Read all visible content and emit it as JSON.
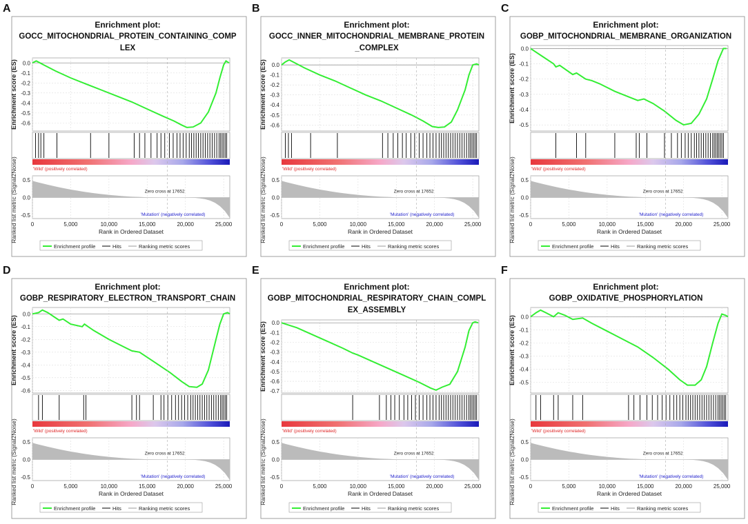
{
  "chart_data": [
    {
      "type": "line",
      "panel_letter": "A",
      "title_prefix": "Enrichment plot:",
      "title_lines": [
        "GOCC_MITOCHONDRIAL_PROTEIN_CONTAINING_COMP",
        "LEX"
      ],
      "es_ylabel": "Enrichment score (ES)",
      "es_yticks": [
        0.0,
        -0.1,
        -0.2,
        -0.3,
        -0.4,
        -0.5,
        -0.6
      ],
      "es_ylim": [
        -0.68,
        0.05
      ],
      "es_curve": [
        [
          0,
          0.0
        ],
        [
          500,
          0.02
        ],
        [
          1000,
          0.0
        ],
        [
          1500,
          -0.02
        ],
        [
          3000,
          -0.08
        ],
        [
          5000,
          -0.15
        ],
        [
          7000,
          -0.21
        ],
        [
          9000,
          -0.27
        ],
        [
          11000,
          -0.33
        ],
        [
          13000,
          -0.39
        ],
        [
          15000,
          -0.46
        ],
        [
          17000,
          -0.53
        ],
        [
          18500,
          -0.58
        ],
        [
          19500,
          -0.62
        ],
        [
          20200,
          -0.645
        ],
        [
          21000,
          -0.64
        ],
        [
          22000,
          -0.6
        ],
        [
          23000,
          -0.49
        ],
        [
          24000,
          -0.3
        ],
        [
          24500,
          -0.15
        ],
        [
          25000,
          -0.02
        ],
        [
          25300,
          0.02
        ],
        [
          25700,
          0.0
        ]
      ],
      "hits": [
        400,
        800,
        1100,
        1500,
        3200,
        7600,
        10000,
        13300,
        14000,
        14700,
        15500,
        16300,
        16800,
        17300,
        17900,
        18400,
        18900,
        19300,
        19700,
        20100,
        20500,
        20800,
        21100,
        21400,
        21700,
        22000,
        22300,
        22600,
        22900,
        23200,
        23500,
        23800,
        24100,
        24400,
        24600,
        24800,
        25000,
        25200,
        25400
      ],
      "rank_ylabel": "Ranked list metric (Signal2Noise)",
      "rank_yticks": [
        0.5,
        0.0,
        -0.5
      ],
      "rank_ylim": [
        -0.6,
        0.62
      ],
      "rank_start": 0.56,
      "rank_end": -0.58,
      "xlabel": "Rank in Ordered Dataset",
      "xticks": [
        0,
        5000,
        10000,
        15000,
        20000,
        25000
      ],
      "xtick_labels": [
        "0",
        "5,000",
        "10,000",
        "15,000",
        "20,000",
        "25,000"
      ],
      "xlim": [
        0,
        25800
      ],
      "zero_cross_label": "Zero cross at 17652",
      "zero_cross": 17652,
      "pos_label": "'Wild' (positively correlated)",
      "neg_label": "'Mutation' (negatively correlated)",
      "legend": [
        "Enrichment profile",
        "Hits",
        "Ranking metric scores"
      ]
    },
    {
      "type": "line",
      "panel_letter": "B",
      "title_prefix": "Enrichment plot:",
      "title_lines": [
        "GOCC_INNER_MITOCHONDRIAL_MEMBRANE_PROTEIN",
        "_COMPLEX"
      ],
      "es_ylabel": "Enrichment score (ES)",
      "es_yticks": [
        0.0,
        -0.1,
        -0.2,
        -0.3,
        -0.4,
        -0.5,
        -0.6
      ],
      "es_ylim": [
        -0.66,
        0.07
      ],
      "es_curve": [
        [
          0,
          0.0
        ],
        [
          500,
          0.03
        ],
        [
          1000,
          0.05
        ],
        [
          1500,
          0.03
        ],
        [
          3000,
          -0.03
        ],
        [
          5000,
          -0.1
        ],
        [
          7000,
          -0.16
        ],
        [
          9000,
          -0.23
        ],
        [
          11000,
          -0.3
        ],
        [
          13000,
          -0.36
        ],
        [
          15000,
          -0.43
        ],
        [
          17000,
          -0.5
        ],
        [
          18500,
          -0.56
        ],
        [
          19700,
          -0.615
        ],
        [
          20500,
          -0.625
        ],
        [
          21300,
          -0.62
        ],
        [
          22200,
          -0.57
        ],
        [
          23000,
          -0.45
        ],
        [
          24000,
          -0.25
        ],
        [
          24500,
          -0.1
        ],
        [
          25000,
          0.0
        ],
        [
          25500,
          0.01
        ],
        [
          25800,
          0.0
        ]
      ],
      "hits": [
        500,
        900,
        1300,
        3800,
        7300,
        13200,
        13900,
        14600,
        15200,
        15800,
        16300,
        16900,
        17400,
        18000,
        18500,
        19000,
        19400,
        19800,
        20200,
        20600,
        20900,
        21200,
        21500,
        21800,
        22100,
        22400,
        22700,
        23000,
        23300,
        23600,
        23900,
        24200,
        24500,
        24700,
        24900,
        25100,
        25300,
        25500
      ],
      "rank_ylabel": "Ranked list metric (Signal2Noise)",
      "rank_yticks": [
        0.5,
        0.0,
        -0.5
      ],
      "rank_ylim": [
        -0.6,
        0.62
      ],
      "rank_start": 0.56,
      "rank_end": -0.58,
      "xlabel": "Rank in Ordered Dataset",
      "xticks": [
        0,
        5000,
        10000,
        15000,
        20000,
        25000
      ],
      "xtick_labels": [
        "0",
        "5,000",
        "10,000",
        "15,000",
        "20,000",
        "25,000"
      ],
      "xlim": [
        0,
        25800
      ],
      "zero_cross_label": "Zero cross at 17652",
      "zero_cross": 17652,
      "pos_label": "'Wild' (positively correlated)",
      "neg_label": "'Mutation' (negatively correlated)",
      "legend": [
        "Enrichment profile",
        "Hits",
        "Ranking metric scores"
      ]
    },
    {
      "type": "line",
      "panel_letter": "C",
      "title_prefix": "Enrichment plot:",
      "title_lines": [
        "GOBP_MITOCHONDRIAL_MEMBRANE_ORGANIZATION"
      ],
      "es_ylabel": "Enrichment score (ES)",
      "es_yticks": [
        0.0,
        -0.1,
        -0.2,
        -0.3,
        -0.4,
        -0.5
      ],
      "es_ylim": [
        -0.54,
        0.02
      ],
      "es_curve": [
        [
          0,
          0.0
        ],
        [
          1500,
          -0.05
        ],
        [
          3000,
          -0.1
        ],
        [
          3300,
          -0.12
        ],
        [
          3800,
          -0.11
        ],
        [
          5500,
          -0.17
        ],
        [
          6000,
          -0.16
        ],
        [
          7200,
          -0.2
        ],
        [
          8000,
          -0.21
        ],
        [
          9000,
          -0.23
        ],
        [
          11000,
          -0.28
        ],
        [
          13000,
          -0.32
        ],
        [
          14000,
          -0.34
        ],
        [
          14800,
          -0.33
        ],
        [
          16000,
          -0.36
        ],
        [
          17500,
          -0.41
        ],
        [
          19000,
          -0.47
        ],
        [
          20000,
          -0.5
        ],
        [
          21000,
          -0.49
        ],
        [
          22000,
          -0.43
        ],
        [
          23000,
          -0.33
        ],
        [
          23800,
          -0.2
        ],
        [
          24500,
          -0.08
        ],
        [
          25200,
          0.0
        ],
        [
          25600,
          0.0
        ]
      ],
      "hits": [
        3300,
        6000,
        7200,
        11000,
        13800,
        14200,
        15200,
        17500,
        18400,
        19200,
        19700,
        20200,
        20600,
        21000,
        21400,
        21700,
        22000,
        22300,
        22600,
        22900,
        23200,
        23500,
        23800,
        24000,
        24200,
        24400,
        24600,
        24800,
        25000,
        25200
      ],
      "rank_ylabel": "Ranked list metric (Signal2Noise)",
      "rank_yticks": [
        0.5,
        0.0,
        -0.5
      ],
      "rank_ylim": [
        -0.6,
        0.62
      ],
      "rank_start": 0.56,
      "rank_end": -0.58,
      "xlabel": "Rank in Ordered Dataset",
      "xticks": [
        0,
        5000,
        10000,
        15000,
        20000,
        25000
      ],
      "xtick_labels": [
        "0",
        "5,000",
        "10,000",
        "15,000",
        "20,000",
        "25,000"
      ],
      "xlim": [
        0,
        25800
      ],
      "zero_cross_label": "Zero cross at 17652",
      "zero_cross": 17652,
      "pos_label": "'Wild' (positively correlated)",
      "neg_label": "'Mutation' (negatively correlated)",
      "legend": [
        "Enrichment profile",
        "Hits",
        "Ranking metric scores"
      ]
    },
    {
      "type": "line",
      "panel_letter": "D",
      "title_prefix": "Enrichment plot:",
      "title_lines": [
        "GOBP_RESPIRATORY_ELECTRON_TRANSPORT_CHAIN"
      ],
      "es_ylabel": "Enrichment score (ES)",
      "es_yticks": [
        0.0,
        -0.1,
        -0.2,
        -0.3,
        -0.4,
        -0.5,
        -0.6
      ],
      "es_ylim": [
        -0.62,
        0.05
      ],
      "es_curve": [
        [
          0,
          0.0
        ],
        [
          800,
          0.01
        ],
        [
          1300,
          0.03
        ],
        [
          2000,
          0.01
        ],
        [
          3500,
          -0.05
        ],
        [
          4000,
          -0.04
        ],
        [
          5000,
          -0.08
        ],
        [
          6500,
          -0.1
        ],
        [
          6800,
          -0.08
        ],
        [
          8000,
          -0.13
        ],
        [
          10000,
          -0.2
        ],
        [
          12000,
          -0.26
        ],
        [
          13000,
          -0.29
        ],
        [
          14000,
          -0.3
        ],
        [
          16000,
          -0.38
        ],
        [
          18000,
          -0.46
        ],
        [
          19500,
          -0.53
        ],
        [
          20500,
          -0.57
        ],
        [
          21500,
          -0.575
        ],
        [
          22200,
          -0.55
        ],
        [
          23000,
          -0.44
        ],
        [
          24000,
          -0.2
        ],
        [
          24500,
          -0.08
        ],
        [
          25000,
          0.0
        ],
        [
          25500,
          0.01
        ],
        [
          25800,
          0.0
        ]
      ],
      "hits": [
        800,
        1300,
        3500,
        6700,
        7000,
        13000,
        13600,
        14000,
        15800,
        16800,
        17200,
        17700,
        18200,
        18700,
        19100,
        19500,
        19900,
        20300,
        20700,
        21000,
        21300,
        21600,
        21900,
        22200,
        22500,
        22800,
        23100,
        23400,
        23700,
        24000,
        24300,
        24600,
        24800,
        25000,
        25200,
        25400
      ],
      "rank_ylabel": "Ranked list metric (Signal2Noise)",
      "rank_yticks": [
        0.5,
        0.0,
        -0.5
      ],
      "rank_ylim": [
        -0.6,
        0.62
      ],
      "rank_start": 0.56,
      "rank_end": -0.58,
      "xlabel": "Rank in Ordered Dataset",
      "xticks": [
        0,
        5000,
        10000,
        15000,
        20000,
        25000
      ],
      "xtick_labels": [
        "0",
        "5,000",
        "10,000",
        "15,000",
        "20,000",
        "25,000"
      ],
      "xlim": [
        0,
        25800
      ],
      "zero_cross_label": "Zero cross at 17652",
      "zero_cross": 17652,
      "pos_label": "'Wild' (positively correlated)",
      "neg_label": "'Mutation' (negatively correlated)",
      "legend": [
        "Enrichment profile",
        "Hits",
        "Ranking metric scores"
      ]
    },
    {
      "type": "line",
      "panel_letter": "E",
      "title_prefix": "Enrichment plot:",
      "title_lines": [
        "GOBP_MITOCHONDRIAL_RESPIRATORY_CHAIN_COMPL",
        "EX_ASSEMBLY"
      ],
      "es_ylabel": "Enrichment score (ES)",
      "es_yticks": [
        0.0,
        -0.1,
        -0.2,
        -0.3,
        -0.4,
        -0.5,
        -0.6,
        -0.7
      ],
      "es_ylim": [
        -0.72,
        0.03
      ],
      "es_curve": [
        [
          0,
          0.0
        ],
        [
          2000,
          -0.05
        ],
        [
          4000,
          -0.12
        ],
        [
          6000,
          -0.19
        ],
        [
          8000,
          -0.26
        ],
        [
          9300,
          -0.31
        ],
        [
          10000,
          -0.33
        ],
        [
          12000,
          -0.4
        ],
        [
          14000,
          -0.47
        ],
        [
          16000,
          -0.54
        ],
        [
          18000,
          -0.61
        ],
        [
          19500,
          -0.67
        ],
        [
          20200,
          -0.69
        ],
        [
          21000,
          -0.66
        ],
        [
          22000,
          -0.63
        ],
        [
          23000,
          -0.5
        ],
        [
          24000,
          -0.25
        ],
        [
          24500,
          -0.08
        ],
        [
          25000,
          0.0
        ],
        [
          25300,
          0.01
        ],
        [
          25700,
          0.0
        ]
      ],
      "hits": [
        9300,
        12800,
        13700,
        14300,
        14800,
        15400,
        16000,
        16500,
        17000,
        17500,
        18000,
        18500,
        19000,
        19400,
        19800,
        20200,
        20600,
        20900,
        21200,
        21500,
        21800,
        22100,
        22400,
        22700,
        23000,
        23300,
        23600,
        23900,
        24200,
        24500,
        24700,
        24900,
        25100,
        25300,
        25500
      ],
      "rank_ylabel": "Ranked list metric (Signal2Noise)",
      "rank_yticks": [
        0.5,
        0.0,
        -0.5
      ],
      "rank_ylim": [
        -0.6,
        0.62
      ],
      "rank_start": 0.56,
      "rank_end": -0.58,
      "xlabel": "Rank in Ordered Dataset",
      "xticks": [
        0,
        5000,
        10000,
        15000,
        20000,
        25000
      ],
      "xtick_labels": [
        "0",
        "5,000",
        "10,000",
        "15,000",
        "20,000",
        "25,000"
      ],
      "xlim": [
        0,
        25800
      ],
      "zero_cross_label": "Zero cross at 17652",
      "zero_cross": 17652,
      "pos_label": "'Wild' (positively correlated)",
      "neg_label": "'Mutation' (negatively correlated)",
      "legend": [
        "Enrichment profile",
        "Hits",
        "Ranking metric scores"
      ]
    },
    {
      "type": "line",
      "panel_letter": "F",
      "title_prefix": "Enrichment plot:",
      "title_lines": [
        "GOBP_OXIDATIVE_PHOSPHORYLATION"
      ],
      "es_ylabel": "Enrichment score (ES)",
      "es_yticks": [
        0.0,
        -0.1,
        -0.2,
        -0.3,
        -0.4,
        -0.5
      ],
      "es_ylim": [
        -0.58,
        0.07
      ],
      "es_curve": [
        [
          0,
          0.0
        ],
        [
          700,
          0.03
        ],
        [
          1300,
          0.05
        ],
        [
          2000,
          0.03
        ],
        [
          3000,
          0.0
        ],
        [
          3600,
          0.03
        ],
        [
          4500,
          0.01
        ],
        [
          5500,
          -0.02
        ],
        [
          6800,
          -0.01
        ],
        [
          8000,
          -0.05
        ],
        [
          10000,
          -0.11
        ],
        [
          12000,
          -0.17
        ],
        [
          14000,
          -0.23
        ],
        [
          16000,
          -0.31
        ],
        [
          18000,
          -0.4
        ],
        [
          19500,
          -0.48
        ],
        [
          20500,
          -0.52
        ],
        [
          21500,
          -0.52
        ],
        [
          22300,
          -0.48
        ],
        [
          23000,
          -0.38
        ],
        [
          23800,
          -0.2
        ],
        [
          24500,
          -0.05
        ],
        [
          25000,
          0.02
        ],
        [
          25500,
          0.01
        ],
        [
          25800,
          0.0
        ]
      ],
      "hits": [
        700,
        1300,
        3000,
        3600,
        5500,
        6800,
        12800,
        13500,
        14300,
        15200,
        15900,
        16600,
        17200,
        17700,
        18200,
        18700,
        19100,
        19500,
        19900,
        20300,
        20600,
        20900,
        21200,
        21500,
        21800,
        22100,
        22400,
        22700,
        23000,
        23300,
        23600,
        23900,
        24200,
        24500,
        24700,
        24900,
        25100,
        25300,
        25500
      ],
      "rank_ylabel": "Ranked list metric (Signal2Noise)",
      "rank_yticks": [
        0.5,
        0.0,
        -0.5
      ],
      "rank_ylim": [
        -0.6,
        0.62
      ],
      "rank_start": 0.56,
      "rank_end": -0.58,
      "xlabel": "Rank in Ordered Dataset",
      "xticks": [
        0,
        5000,
        10000,
        15000,
        20000,
        25000
      ],
      "xtick_labels": [
        "0",
        "5,000",
        "10,000",
        "15,000",
        "20,000",
        "25,000"
      ],
      "xlim": [
        0,
        25800
      ],
      "zero_cross_label": "Zero cross at 17652",
      "zero_cross": 17652,
      "pos_label": "'Wild' (positively correlated)",
      "neg_label": "'Mutation' (negatively correlated)",
      "legend": [
        "Enrichment profile",
        "Hits",
        "Ranking metric scores"
      ]
    }
  ],
  "colors": {
    "es_line": "#33ee33",
    "hit": "#000000",
    "rank_fill": "#bbbbbb",
    "pos_text": "#dd2222",
    "neg_text": "#2222cc",
    "grid": "#dddddd",
    "header_bg": "#e6e6e6"
  }
}
